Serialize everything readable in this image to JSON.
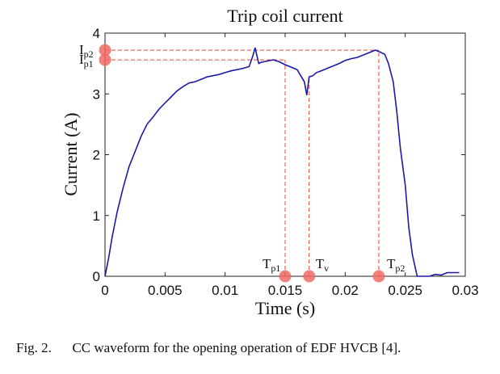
{
  "chart_data": {
    "type": "line",
    "title": "Trip coil current",
    "xlabel": "Time (s)",
    "ylabel": "Current (A)",
    "xlim": [
      0,
      0.03
    ],
    "ylim": [
      0,
      4
    ],
    "x_ticks": [
      0,
      0.005,
      0.01,
      0.015,
      0.02,
      0.025,
      0.03
    ],
    "x_tick_labels": [
      "0",
      "0.005",
      "0.01",
      "0.015",
      "0.02",
      "0.025",
      "0.03"
    ],
    "y_ticks": [
      0,
      1,
      2,
      3,
      4
    ],
    "y_tick_labels": [
      "0",
      "1",
      "2",
      "3",
      "4"
    ],
    "grid": false,
    "series": [
      {
        "color": "#1a1aa8",
        "x": [
          0,
          0.0003,
          0.0006,
          0.001,
          0.0015,
          0.002,
          0.0025,
          0.003,
          0.0035,
          0.004,
          0.0045,
          0.005,
          0.0055,
          0.006,
          0.0065,
          0.007,
          0.0075,
          0.008,
          0.0085,
          0.009,
          0.0095,
          0.01,
          0.0105,
          0.011,
          0.0115,
          0.012,
          0.0123,
          0.0125,
          0.0128,
          0.013,
          0.0135,
          0.014,
          0.0145,
          0.015,
          0.0155,
          0.016,
          0.0163,
          0.0166,
          0.0168,
          0.017,
          0.0173,
          0.0176,
          0.018,
          0.0185,
          0.019,
          0.0195,
          0.02,
          0.0205,
          0.021,
          0.0215,
          0.022,
          0.0225,
          0.0228,
          0.023,
          0.0233,
          0.0236,
          0.024,
          0.0243,
          0.0246,
          0.025,
          0.0253,
          0.0256,
          0.026,
          0.0263,
          0.0265,
          0.027,
          0.0275,
          0.028,
          0.0285,
          0.029,
          0.0295
        ],
        "y": [
          0,
          0.3,
          0.65,
          1.05,
          1.45,
          1.8,
          2.05,
          2.3,
          2.5,
          2.62,
          2.75,
          2.85,
          2.95,
          3.05,
          3.12,
          3.18,
          3.2,
          3.24,
          3.28,
          3.3,
          3.32,
          3.35,
          3.38,
          3.4,
          3.42,
          3.45,
          3.62,
          3.76,
          3.5,
          3.52,
          3.54,
          3.56,
          3.53,
          3.48,
          3.44,
          3.4,
          3.3,
          3.2,
          2.98,
          3.28,
          3.3,
          3.35,
          3.38,
          3.42,
          3.46,
          3.5,
          3.55,
          3.58,
          3.6,
          3.64,
          3.68,
          3.72,
          3.7,
          3.68,
          3.65,
          3.5,
          3.2,
          2.7,
          2.1,
          1.5,
          0.8,
          0.35,
          0,
          0,
          0,
          0,
          0.03,
          0.02,
          0.06,
          0.06,
          0.06
        ]
      }
    ],
    "reference_lines": [
      {
        "type": "h",
        "y": 3.72,
        "x_end": 0.0228,
        "color": "#e8453c"
      },
      {
        "type": "h",
        "y": 3.56,
        "x_end": 0.015,
        "color": "#e8453c"
      },
      {
        "type": "v",
        "x": 0.015,
        "y_end": 3.56,
        "color": "#e8453c"
      },
      {
        "type": "v",
        "x": 0.017,
        "y_end": 3.3,
        "color": "#e8453c"
      },
      {
        "type": "v",
        "x": 0.0228,
        "y_end": 3.72,
        "color": "#e8453c"
      }
    ],
    "markers": [
      {
        "x": 0,
        "y": 3.72,
        "label_main": "I",
        "label_sub": "p2",
        "color": "#f06a64"
      },
      {
        "x": 0,
        "y": 3.56,
        "label_main": "I",
        "label_sub": "p1",
        "color": "#f06a64"
      },
      {
        "x": 0.015,
        "y": 0,
        "label_main": "T",
        "label_sub": "p1",
        "color": "#f06a64"
      },
      {
        "x": 0.017,
        "y": 0,
        "label_main": "T",
        "label_sub": "v",
        "color": "#f06a64"
      },
      {
        "x": 0.0228,
        "y": 0,
        "label_main": "T",
        "label_sub": "p2",
        "color": "#f06a64"
      }
    ]
  },
  "caption": {
    "fig": "Fig. 2.",
    "text": "CC waveform for the opening operation of EDF HVCB [4]."
  }
}
